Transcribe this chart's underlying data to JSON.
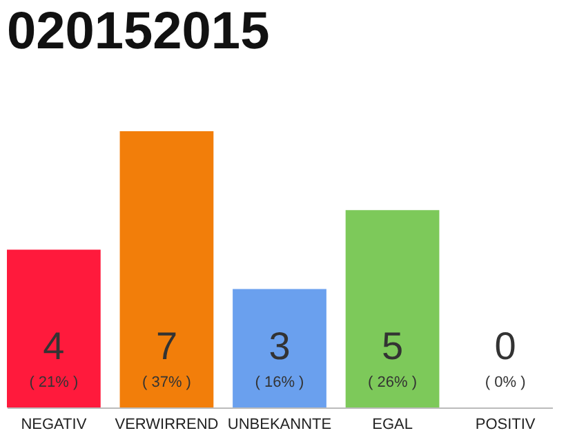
{
  "chart_data": {
    "type": "bar",
    "title": "020152015",
    "categories": [
      "NEGATIV",
      "VERWIRREND",
      "UNBEKANNTE",
      "EGAL",
      "POSITIV"
    ],
    "values": [
      4,
      7,
      3,
      5,
      0
    ],
    "colors": [
      "#ff1a3c",
      "#f27e0a",
      "#6aa0ee",
      "#7dc95a",
      "#9e9e9e"
    ],
    "ylim": [
      0,
      7
    ],
    "tick_labels": "x",
    "data_labels": true,
    "annotations": [
      "( 21% )",
      "( 37% )",
      "( 16% )",
      "( 26% )",
      "( 0% )"
    ]
  }
}
